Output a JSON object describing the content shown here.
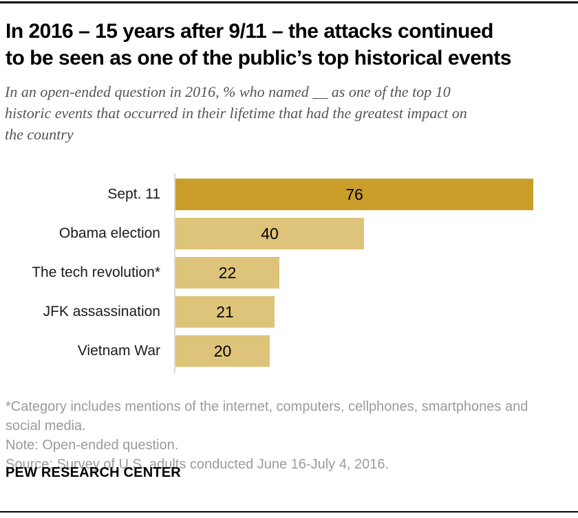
{
  "header": {
    "title_line1": "In 2016 – 15 years after 9/11 – the attacks continued",
    "title_line2": "to be seen as one of the public’s top historical events"
  },
  "subtitle": {
    "lines": [
      "In an open-ended question in 2016, % who named __ as one of the top 10",
      "historic events that occurred in their lifetime that had the greatest impact on",
      "the country"
    ]
  },
  "chart_data": {
    "type": "bar",
    "orientation": "horizontal",
    "categories": [
      "Sept. 11",
      "Obama election",
      "The tech revolution*",
      "JFK assassination",
      "Vietnam War"
    ],
    "values": [
      76,
      40,
      22,
      21,
      20
    ],
    "value_unit": "%",
    "xlim": [
      0,
      85
    ],
    "highlight_index": 0,
    "highlight_color": "#CB9E2C",
    "base_color": "#DEC37A",
    "axis_line_color": "#d9d9d9",
    "value_label_position": "inside-center",
    "grid": "off",
    "legend": "none",
    "title": "",
    "xlabel": "",
    "ylabel": ""
  },
  "footnotes": {
    "asterisk": "*Category includes mentions of the internet, computers, cellphones, smartphones and social media.",
    "note": "Note: Open-ended question.",
    "source": "Source: Survey of U.S. adults conducted June 16-July 4, 2016."
  },
  "footer": {
    "brand": "PEW RESEARCH CENTER"
  }
}
